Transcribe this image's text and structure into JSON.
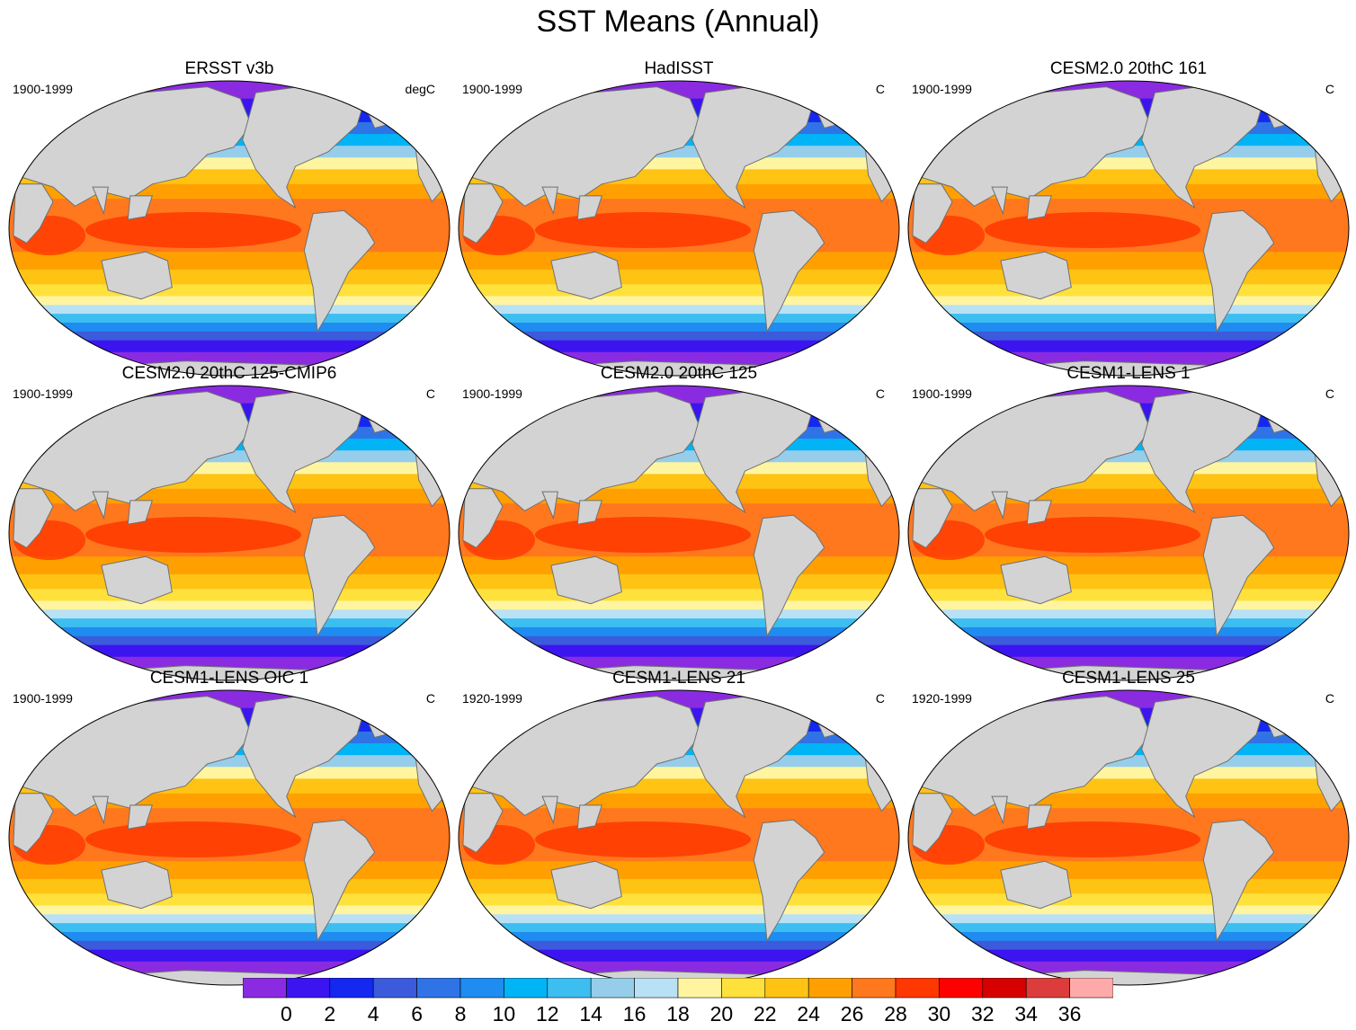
{
  "title": "SST Means (Annual)",
  "colors": {
    "land": "#d3d3d3",
    "coast": "#707070",
    "missing": "#ffffff",
    "scale": [
      "#8a2be2",
      "#3c14f0",
      "#1428f0",
      "#3c5adc",
      "#2f73e6",
      "#1e8cf0",
      "#00b4f5",
      "#3cbef0",
      "#96cdeb",
      "#b9e1f5",
      "#fff5a0",
      "#ffe13c",
      "#ffc314",
      "#ffa000",
      "#ff781e",
      "#ff3700",
      "#ff0000",
      "#d70000",
      "#dc3c3c",
      "#ffaaaa"
    ]
  },
  "panels": [
    {
      "title": "ERSST v3b",
      "period": "1900-1999",
      "units": "degC"
    },
    {
      "title": "HadISST",
      "period": "1900-1999",
      "units": "C"
    },
    {
      "title": "CESM2.0 20thC 161",
      "period": "1900-1999",
      "units": "C"
    },
    {
      "title": "CESM2.0 20thC 125-CMIP6",
      "period": "1900-1999",
      "units": "C"
    },
    {
      "title": "CESM2.0 20thC 125",
      "period": "1900-1999",
      "units": "C"
    },
    {
      "title": "CESM1-LENS 1",
      "period": "1900-1999",
      "units": "C"
    },
    {
      "title": "CESM1-LENS OIC 1",
      "period": "1900-1999",
      "units": "C"
    },
    {
      "title": "CESM1-LENS 21",
      "period": "1920-1999",
      "units": "C"
    },
    {
      "title": "CESM1-LENS 25",
      "period": "1920-1999",
      "units": "C"
    }
  ],
  "colorbar": {
    "labels": [
      "0",
      "2",
      "4",
      "6",
      "8",
      "10",
      "12",
      "14",
      "16",
      "18",
      "20",
      "22",
      "24",
      "26",
      "28",
      "30",
      "32",
      "34",
      "36"
    ]
  }
}
